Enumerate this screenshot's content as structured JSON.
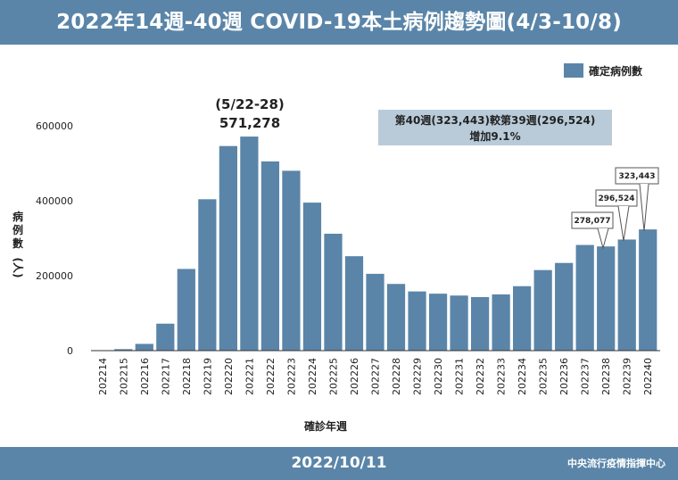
{
  "header": {
    "title": "2022年14週-40週 COVID-19本土病例趨勢圖(4/3-10/8)"
  },
  "footer": {
    "date": "2022/10/11",
    "source": "中央流行疫情指揮中心"
  },
  "colors": {
    "bar": "#5a85a8",
    "band": "#5a85a8",
    "note_box": "#b9cbd9",
    "axis": "#333333"
  },
  "chart_data": {
    "type": "bar",
    "categories": [
      "202214",
      "202215",
      "202216",
      "202217",
      "202218",
      "202219",
      "202220",
      "202221",
      "202222",
      "202223",
      "202224",
      "202225",
      "202226",
      "202227",
      "202228",
      "202229",
      "202230",
      "202231",
      "202232",
      "202233",
      "202234",
      "202235",
      "202236",
      "202237",
      "202238",
      "202239",
      "202240"
    ],
    "series": [
      {
        "name": "確定病例數",
        "values": [
          300,
          4000,
          18000,
          72000,
          218000,
          404000,
          546000,
          571278,
          505000,
          480000,
          395000,
          312000,
          252000,
          205000,
          178000,
          158000,
          152000,
          147000,
          143000,
          150000,
          172000,
          215000,
          234000,
          282000,
          278077,
          296524,
          323443
        ]
      }
    ],
    "xlabel": "確診年週",
    "ylabel": "病例數(人)",
    "ylim": [
      0,
      650000
    ],
    "yticks": [
      "0",
      "200000",
      "400000",
      "600000"
    ],
    "legend": "top-right",
    "grid": false,
    "annotations": {
      "peak": {
        "range": "(5/22-28)",
        "value": "571,278"
      },
      "note": {
        "line1": "第40週(323,443)較第39週(296,524)",
        "line2": "增加9.1%"
      },
      "callouts": [
        "278,077",
        "296,524",
        "323,443"
      ]
    }
  }
}
